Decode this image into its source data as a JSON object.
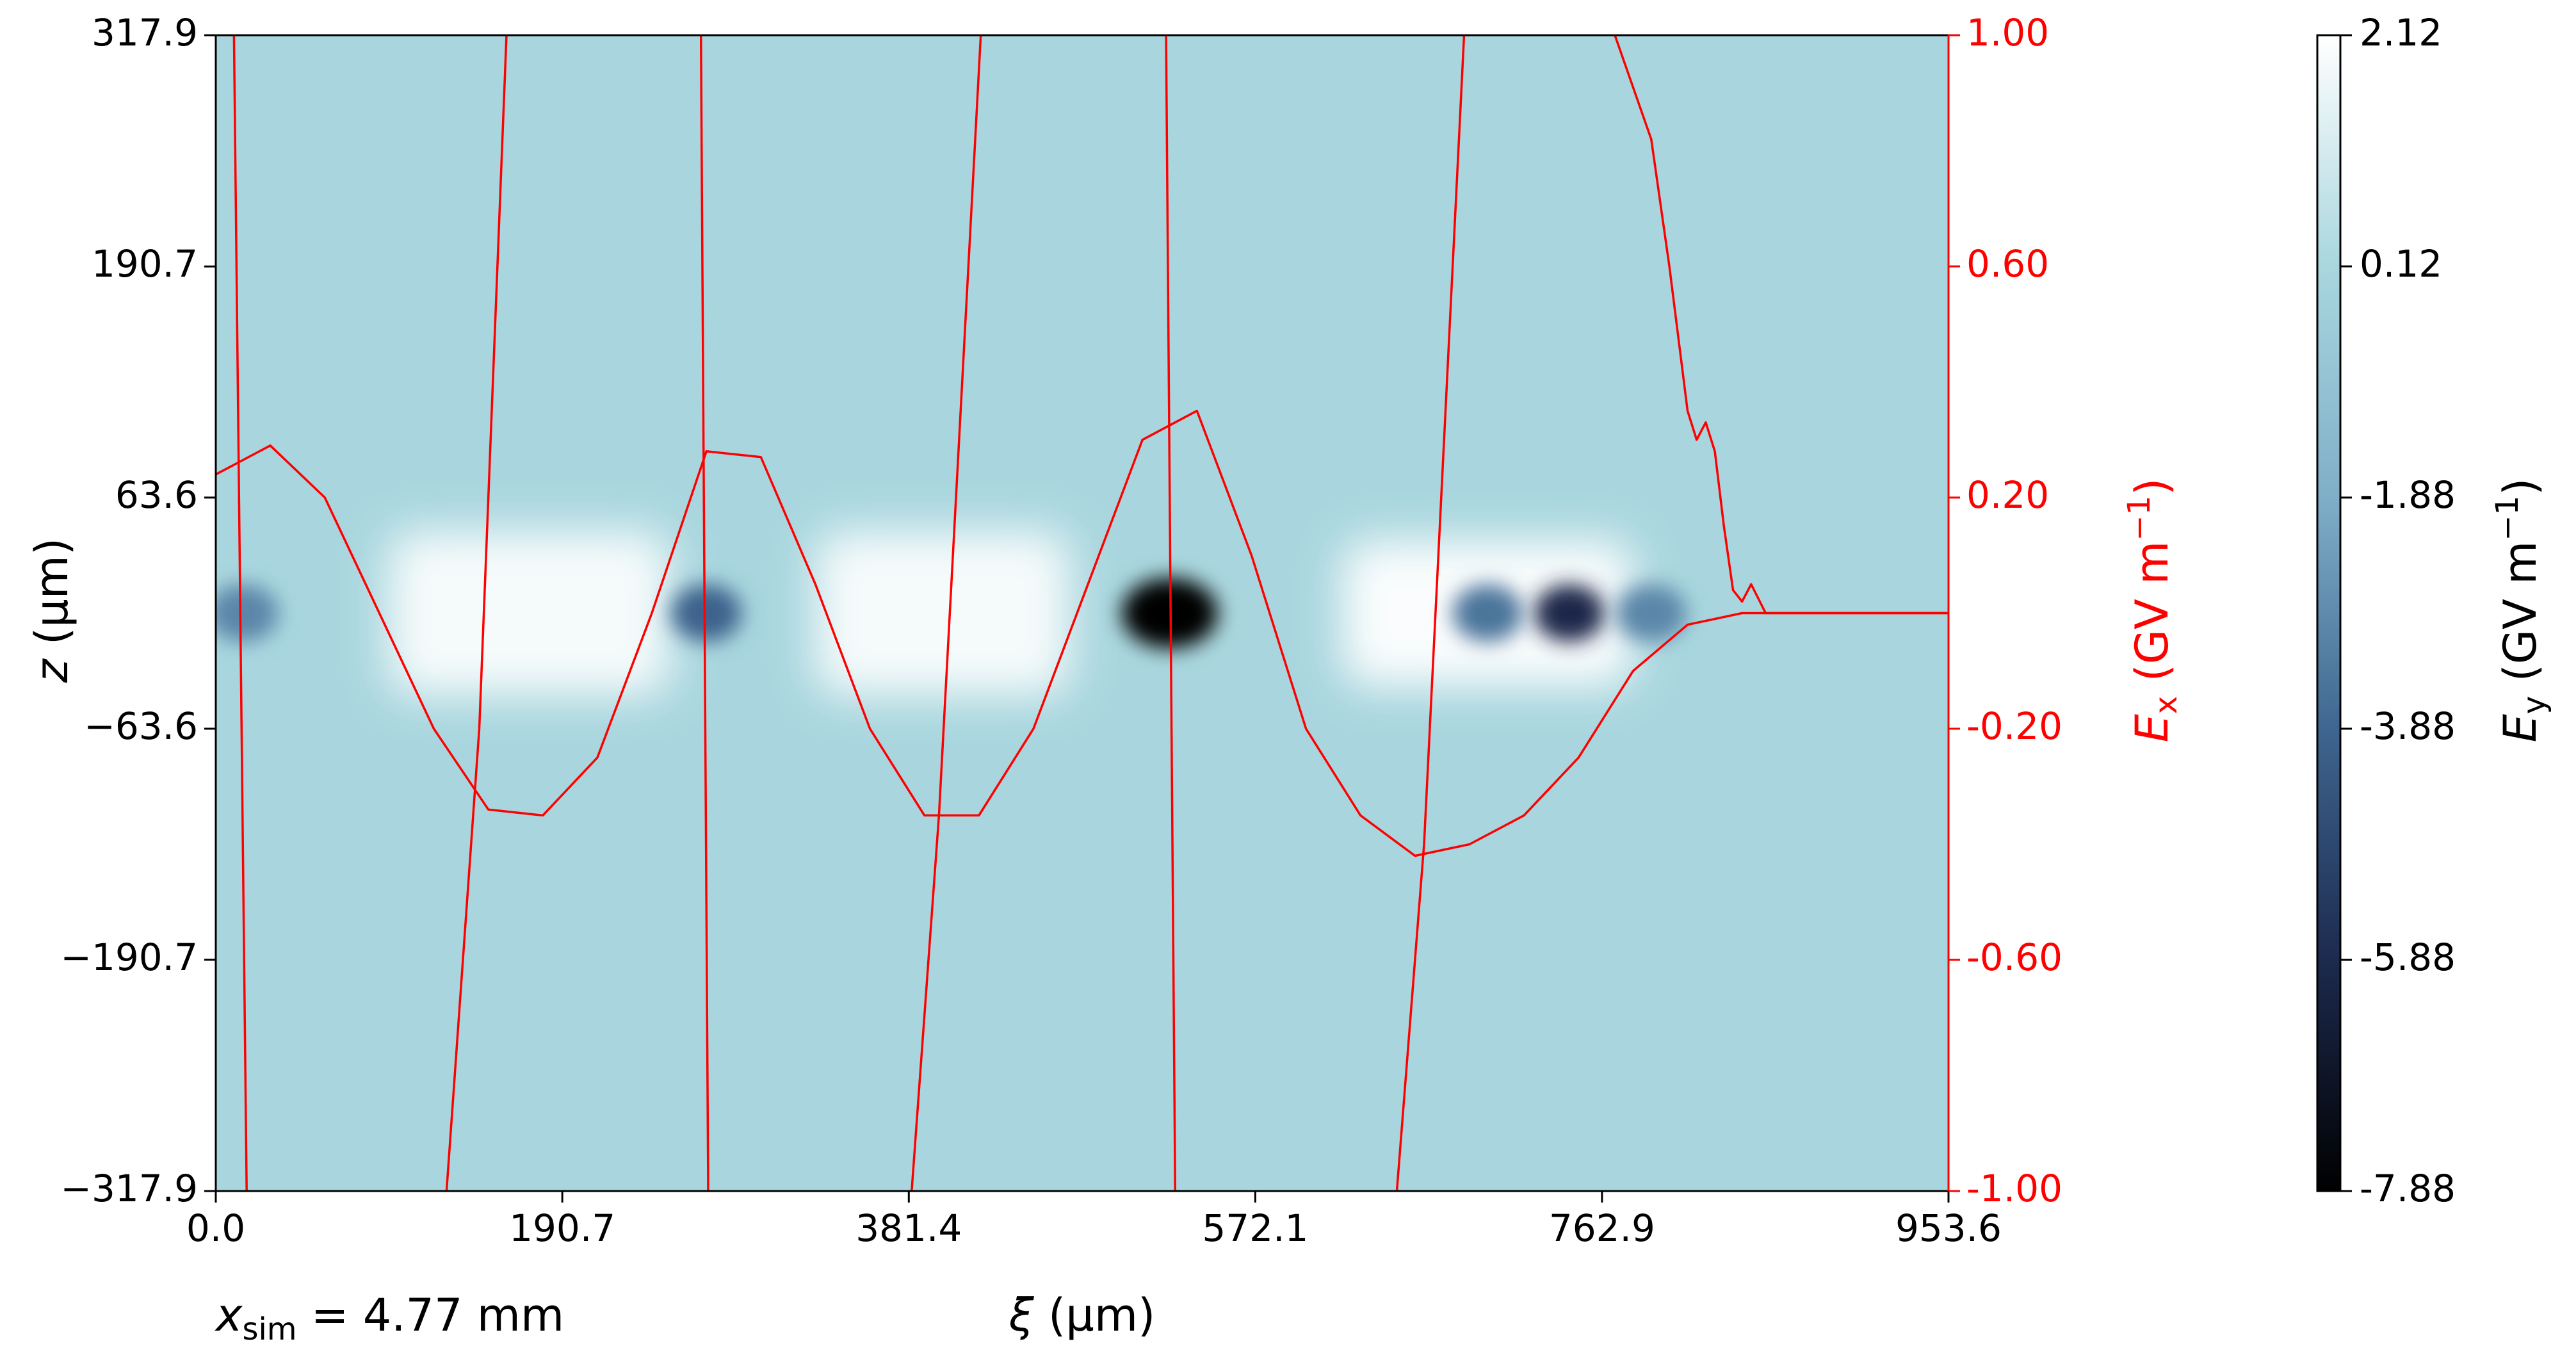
{
  "chart_data": {
    "type": "heatmap",
    "x_axis": {
      "label_symbol": "ξ",
      "label_unit": " (µm)",
      "lim": [
        0.0,
        953.6
      ],
      "ticks": [
        0.0,
        190.7,
        381.4,
        572.1,
        762.9,
        953.6
      ],
      "tick_labels": [
        "0.0",
        "190.7",
        "381.4",
        "572.1",
        "762.9",
        "953.6"
      ]
    },
    "y_axis": {
      "label_symbol": "z",
      "label_unit": " (µm)",
      "lim": [
        -317.9,
        317.9
      ],
      "ticks": [
        -317.9,
        -190.7,
        -63.6,
        63.6,
        190.7,
        317.9
      ],
      "tick_labels": [
        "−317.9",
        "−190.7",
        "−63.6",
        "63.6",
        "190.7",
        "317.9"
      ]
    },
    "y2_axis": {
      "label_symbol": "E",
      "label_sub": "x",
      "label_unit": " (GV m",
      "label_sup": "−1",
      "label_close": ")",
      "color": "#ff0000",
      "lim": [
        -1.0,
        1.0
      ],
      "ticks": [
        -1.0,
        -0.6,
        -0.2,
        0.2,
        0.6,
        1.0
      ],
      "tick_labels": [
        "-1.00",
        "-0.60",
        "-0.20",
        "0.20",
        "0.60",
        "1.00"
      ]
    },
    "colorbar": {
      "label_symbol": "E",
      "label_sub": "y",
      "label_unit": " (GV m",
      "label_sup": "−1",
      "label_close": ")",
      "lim": [
        -7.88,
        2.12
      ],
      "ticks": [
        -7.88,
        -5.88,
        -3.88,
        -1.88,
        0.12,
        2.12
      ],
      "tick_labels": [
        "-7.88",
        "-5.88",
        "-3.88",
        "-1.88",
        "0.12",
        "2.12"
      ],
      "colormap": [
        "#000000",
        "#1c2a4e",
        "#3f6690",
        "#7fafc8",
        "#a9d6de",
        "#ffffff"
      ]
    },
    "heatmap_background": "#a9d6de",
    "heatmap_features": [
      {
        "kind": "bright",
        "xi": [
          95,
          250
        ],
        "z": [
          -45,
          45
        ],
        "value": 2.0
      },
      {
        "kind": "bright",
        "xi": [
          330,
          470
        ],
        "z": [
          -45,
          45
        ],
        "value": 2.0
      },
      {
        "kind": "bright",
        "xi": [
          620,
          780
        ],
        "z": [
          -40,
          40
        ],
        "value": 2.12
      },
      {
        "kind": "dark",
        "xi": 270,
        "z": 0,
        "value": -4.0
      },
      {
        "kind": "dark",
        "xi": 525,
        "z": 0,
        "value": -7.88
      },
      {
        "kind": "dark",
        "xi": 745,
        "z": 0,
        "value": -6.0
      },
      {
        "kind": "dark",
        "xi": 700,
        "z": 0,
        "value": -3.5
      },
      {
        "kind": "dark",
        "xi": 15,
        "z": 0,
        "value": -3.0
      },
      {
        "kind": "dark",
        "xi": 790,
        "z": 0,
        "value": -3.0
      }
    ],
    "series": [
      {
        "color": "#ff0000",
        "x": [
          0,
          30,
          60,
          90,
          120,
          150,
          180,
          210,
          240,
          270,
          300,
          330,
          360,
          390,
          420,
          450,
          480,
          510,
          540,
          570,
          600,
          630,
          660,
          690,
          720,
          750,
          780,
          810,
          840,
          860,
          953.6
        ],
        "y": [
          0.24,
          0.29,
          0.2,
          0.0,
          -0.2,
          -0.34,
          -0.35,
          -0.25,
          0.0,
          0.28,
          0.27,
          0.05,
          -0.2,
          -0.35,
          -0.35,
          -0.2,
          0.05,
          0.3,
          0.35,
          0.1,
          -0.2,
          -0.35,
          -0.42,
          -0.4,
          -0.35,
          -0.25,
          -0.1,
          -0.02,
          0.0,
          0.0,
          0.0
        ]
      },
      {
        "color": "#ff0000",
        "x": [
          770,
          790,
          800,
          810,
          815,
          820,
          825,
          830,
          835,
          840,
          845,
          853,
          860,
          870,
          953.6
        ],
        "y": [
          1.0,
          0.82,
          0.6,
          0.35,
          0.3,
          0.33,
          0.28,
          0.15,
          0.04,
          0.02,
          0.05,
          0.0,
          0.0,
          0.0,
          0.0
        ]
      },
      {
        "color": "#ff0000",
        "x": [
          10,
          17
        ],
        "y": [
          1.0,
          -1.0
        ]
      },
      {
        "color": "#ff0000",
        "x": [
          160,
          145,
          127
        ],
        "y": [
          1.0,
          -0.2,
          -1.0
        ]
      },
      {
        "color": "#ff0000",
        "x": [
          267,
          271
        ],
        "y": [
          1.0,
          -1.0
        ]
      },
      {
        "color": "#ff0000",
        "x": [
          421,
          398,
          383
        ],
        "y": [
          1.0,
          -0.35,
          -1.0
        ]
      },
      {
        "color": "#ff0000",
        "x": [
          523,
          528
        ],
        "y": [
          1.0,
          -1.0
        ]
      },
      {
        "color": "#ff0000",
        "x": [
          687,
          665,
          650
        ],
        "y": [
          1.0,
          -0.4,
          -1.0
        ]
      }
    ],
    "annotation": {
      "symbol": "x",
      "sub": "sim",
      "text": " =  4.77 mm"
    }
  }
}
